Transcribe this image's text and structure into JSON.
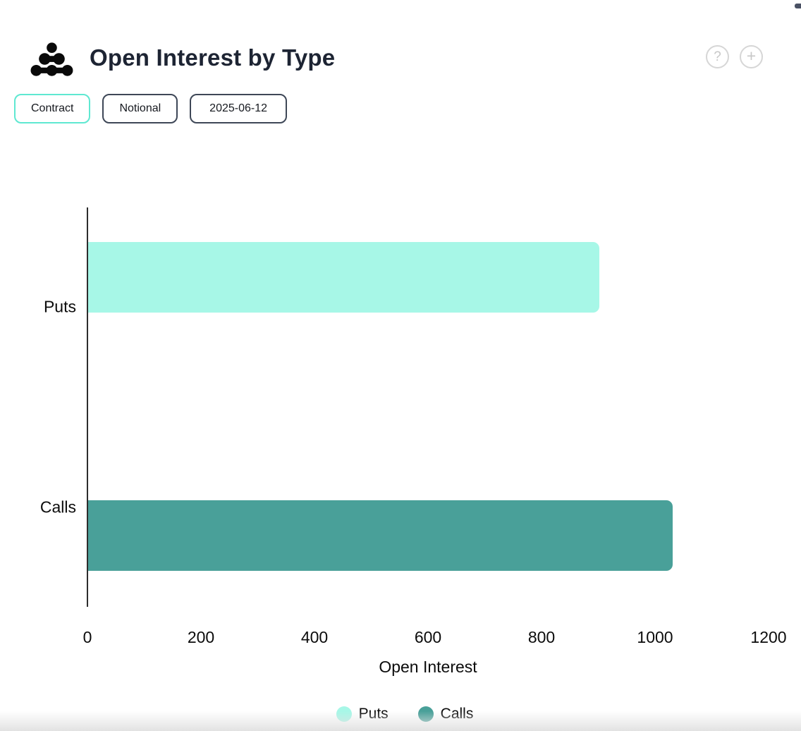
{
  "header": {
    "title": "Open Interest by Type",
    "help_glyph": "?",
    "add_glyph": "+"
  },
  "toolbar": {
    "buttons": [
      {
        "label": "Contract",
        "active": true
      },
      {
        "label": "Notional",
        "active": false
      },
      {
        "label": "2025-06-12",
        "active": false
      }
    ],
    "active_border_color": "#5fe8d1",
    "inactive_border_color": "#3e4757"
  },
  "chart_data": {
    "type": "bar",
    "orientation": "horizontal",
    "categories": [
      "Puts",
      "Calls"
    ],
    "values": [
      900,
      1030
    ],
    "series_colors": {
      "Puts": "#a7f7e7",
      "Calls": "#49a099"
    },
    "xlabel": "Open Interest",
    "xlim": [
      0,
      1200
    ],
    "xticks": [
      0,
      200,
      400,
      600,
      800,
      1000,
      1200
    ],
    "grid": false,
    "legend_position": "bottom",
    "legend": [
      {
        "label": "Puts",
        "color": "#a7f7e7"
      },
      {
        "label": "Calls",
        "color": "#49a099"
      }
    ]
  }
}
